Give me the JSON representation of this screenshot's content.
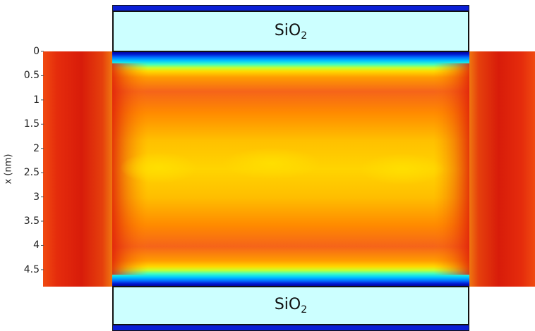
{
  "oxide_top": {
    "label": "SiO",
    "subscript": "2"
  },
  "oxide_bottom": {
    "label": "SiO",
    "subscript": "2"
  },
  "chart_data": {
    "type": "heatmap",
    "ylabel": "x (nm)",
    "ylim": [
      0,
      4.85
    ],
    "ticks": [
      "0",
      "0.5",
      "1",
      "1.5",
      "2",
      "2.5",
      "3",
      "3.5",
      "4",
      "4.5"
    ],
    "tick_values": [
      0,
      0.5,
      1,
      1.5,
      2,
      2.5,
      3,
      3.5,
      4,
      4.5
    ]
  },
  "colors": {
    "oxide_fill": "#ccffff",
    "gate_metal": "#0a1fd6",
    "colormap": [
      "#00008f",
      "#0030ff",
      "#00b4ff",
      "#40ffc0",
      "#c8ff30",
      "#ffe000",
      "#ffb400",
      "#ff7800",
      "#f03c0a",
      "#dc1e0a"
    ]
  }
}
